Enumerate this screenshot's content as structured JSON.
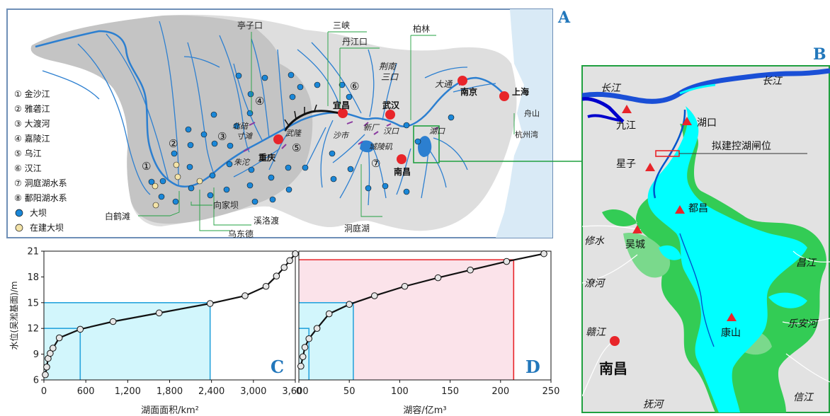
{
  "panel_letters": {
    "a": "A",
    "b": "B",
    "c": "C",
    "d": "D"
  },
  "panel_a": {
    "rivers": [
      "① 金沙江",
      "② 雅砻江",
      "③ 大渡河",
      "④ 嘉陵江",
      "⑤ 乌江",
      "⑥ 汉江",
      "⑦ 洞庭湖水系",
      "⑧ 鄱阳湖水系"
    ],
    "legend_symbols": [
      "大坝",
      "在建大坝"
    ],
    "cities": [
      "重庆",
      "宜昌",
      "武汉",
      "南昌",
      "南京",
      "上海"
    ],
    "callouts": [
      "亭子口",
      "三峡",
      "丹江口",
      "柏林",
      "荆南",
      "三口",
      "大通",
      "舟山",
      "杭州湾",
      "北碚",
      "寸滩",
      "朱沱",
      "武隆",
      "新厂",
      "沙市",
      "汉口",
      "城陵矶",
      "湖口",
      "白鹤滩",
      "向家坝",
      "溪洛渡",
      "乌东德",
      "洞庭湖"
    ],
    "circled_numbers": [
      "①",
      "②",
      "③",
      "④",
      "⑤",
      "⑥",
      "⑦"
    ]
  },
  "panel_b": {
    "title": "拟建控湖闸位",
    "rivers": [
      "长江",
      "长江",
      "修水",
      "潦河",
      "赣江",
      "抚河",
      "信江",
      "乐安河",
      "昌江"
    ],
    "stations": [
      "湖口",
      "九江",
      "星子",
      "都昌",
      "吴城",
      "康山"
    ],
    "city": "南昌"
  },
  "chart_data": [
    {
      "type": "line",
      "panel": "C",
      "xlabel": "湖面面积/km²",
      "ylabel": "水位(吴淞基面)/m",
      "xlim": [
        0,
        3600
      ],
      "ylim": [
        6,
        21
      ],
      "x_ticks": [
        "0",
        "600",
        "1,200",
        "1,800",
        "2,400",
        "3,000",
        "3,600"
      ],
      "y_ticks": [
        "6",
        "9",
        "12",
        "15",
        "18",
        "21"
      ],
      "series": [
        {
          "x": [
            20,
            40,
            60,
            90,
            130,
            220,
            520,
            990,
            1650,
            2380,
            2880,
            3180,
            3330,
            3440,
            3520,
            3600
          ],
          "y": [
            6.6,
            7.5,
            8.5,
            9.1,
            9.7,
            10.9,
            11.9,
            12.8,
            13.8,
            14.9,
            15.8,
            16.9,
            18.1,
            19.1,
            19.9,
            20.7
          ]
        }
      ],
      "reference_lines": [
        {
          "x": 520,
          "y": 12
        },
        {
          "x": 2380,
          "y": 15
        }
      ]
    },
    {
      "type": "line",
      "panel": "D",
      "xlabel": "湖容/亿m³",
      "ylabel": "",
      "xlim": [
        0,
        250
      ],
      "ylim": [
        6,
        21
      ],
      "x_ticks": [
        "0",
        "50",
        "100",
        "150",
        "200",
        "250"
      ],
      "series": [
        {
          "x": [
            2,
            4,
            6,
            10,
            18,
            30,
            50,
            75,
            105,
            138,
            170,
            206,
            243
          ],
          "y": [
            7.6,
            8.7,
            9.8,
            10.8,
            12.0,
            13.7,
            14.8,
            15.8,
            16.9,
            17.9,
            18.8,
            19.8,
            20.7
          ]
        }
      ],
      "reference_lines": [
        {
          "x": 10,
          "y": 12
        },
        {
          "x": 54,
          "y": 15
        },
        {
          "x": 213,
          "y": 20
        }
      ]
    }
  ],
  "colors": {
    "basin_dark": "#c4c4c4",
    "basin_light": "#dedede",
    "ocean": "#d9eaf6",
    "river": "#2c7fd0",
    "lake_deep": "#00ffff",
    "lake_marsh": "#33cc55",
    "accent_red": "#e8252a",
    "accent_green": "#20a040",
    "letter_blue": "#2277bb",
    "band_cyan": "#d2f6fc",
    "band_pink": "#fbe3ea"
  }
}
